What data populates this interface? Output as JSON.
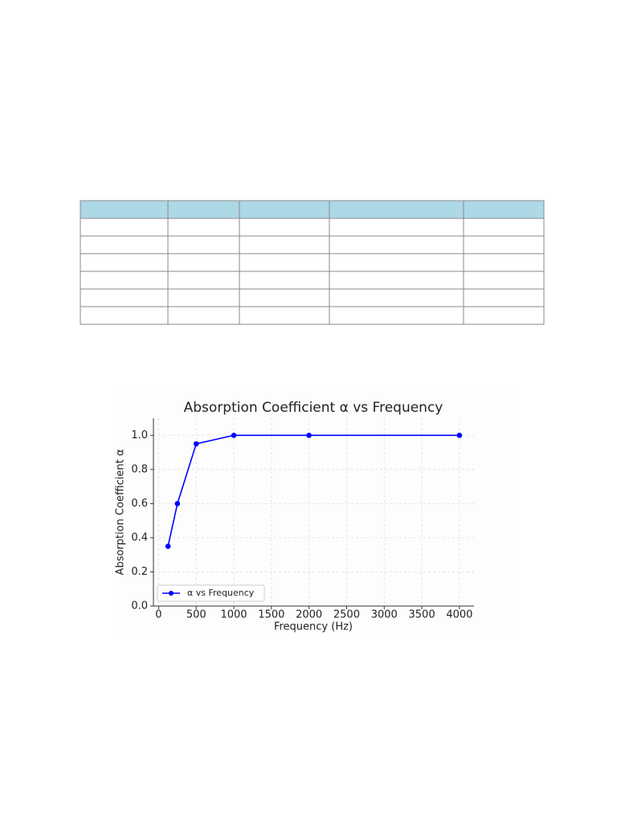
{
  "chart_data": {
    "type": "line",
    "title": "Absorption Coefficient α vs Frequency",
    "x_label": "Frequency (Hz)",
    "y_label": "Absorption Coefficient α",
    "x": [
      125,
      250,
      500,
      1000,
      2000,
      4000
    ],
    "series": [
      {
        "name": "α vs Frequency",
        "color": "#0000ff",
        "values": [
          0.35,
          0.6,
          0.95,
          1.0,
          1.0,
          1.0
        ]
      }
    ],
    "xlim": [
      -68.75,
      4193.75
    ],
    "xticks": [
      0,
      500,
      1000,
      1500,
      2000,
      2500,
      3000,
      3500,
      4000
    ],
    "ylim": [
      0,
      1.1
    ],
    "yticks": [
      {
        "value": 0,
        "label": "0.0"
      },
      0.2,
      0.4,
      0.6,
      0.8,
      {
        "value": 1,
        "label": "1.0"
      }
    ],
    "grid": true,
    "legend": "lower left"
  }
}
